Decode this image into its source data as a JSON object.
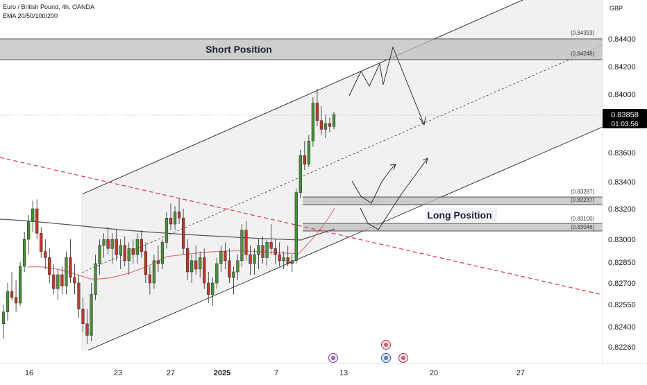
{
  "header": {
    "title": "Euro / British Pound, 4h, OANDA",
    "indicator": "EMA 20/50/100/200",
    "currency": "GBP"
  },
  "colors": {
    "bull": "#4a8f3a",
    "bear": "#c0392b",
    "ema_slow": "#555555",
    "ema_fast": "#e06070",
    "trendline": "#e0304a",
    "zone": "#bdbdbd",
    "channel_fill": "#eeeeee",
    "price_badge": "#000000"
  },
  "chart_data": {
    "type": "candlestick",
    "y_ticks": [
      "0.84400",
      "0.84200",
      "0.84000",
      "0.83600",
      "0.83400",
      "0.83200",
      "0.83000",
      "0.82850",
      "0.82700",
      "0.82550",
      "0.82400",
      "0.82260"
    ],
    "x_ticks": [
      "16",
      "23",
      "27",
      "2025",
      "7",
      "13",
      "20",
      "27"
    ],
    "current_price": "0.83858",
    "countdown": "01:03:56",
    "zones": [
      {
        "label": "Short Position",
        "top_label": "(0.84393)",
        "bottom_label": "(0.84248)"
      },
      {
        "label": "",
        "top_label": "(0.83287)",
        "bottom_label": "(0.83237)"
      },
      {
        "label": "Long Position",
        "top_label": "(0.83100)",
        "bottom_label": "(0.83046)"
      }
    ],
    "candles": [
      [
        0.8242,
        0.8255,
        0.8232,
        0.825
      ],
      [
        0.825,
        0.827,
        0.8244,
        0.8264
      ],
      [
        0.8264,
        0.8278,
        0.8258,
        0.826
      ],
      [
        0.826,
        0.8272,
        0.825,
        0.8256
      ],
      [
        0.8256,
        0.8285,
        0.8254,
        0.8282
      ],
      [
        0.8282,
        0.8305,
        0.8278,
        0.83
      ],
      [
        0.83,
        0.8316,
        0.829,
        0.8312
      ],
      [
        0.8312,
        0.8326,
        0.8305,
        0.832
      ],
      [
        0.832,
        0.8327,
        0.83,
        0.8304
      ],
      [
        0.8304,
        0.8308,
        0.8288,
        0.8292
      ],
      [
        0.8292,
        0.83,
        0.828,
        0.8288
      ],
      [
        0.8288,
        0.8294,
        0.827,
        0.8276
      ],
      [
        0.8276,
        0.8284,
        0.8262,
        0.8266
      ],
      [
        0.8266,
        0.828,
        0.8258,
        0.8276
      ],
      [
        0.8276,
        0.8282,
        0.8262,
        0.8268
      ],
      [
        0.8268,
        0.8292,
        0.8262,
        0.8288
      ],
      [
        0.8288,
        0.83,
        0.827,
        0.8274
      ],
      [
        0.8274,
        0.8284,
        0.8262,
        0.827
      ],
      [
        0.827,
        0.8276,
        0.8246,
        0.8252
      ],
      [
        0.8252,
        0.826,
        0.8236,
        0.8242
      ],
      [
        0.8242,
        0.8252,
        0.8228,
        0.8234
      ],
      [
        0.8234,
        0.827,
        0.823,
        0.8262
      ],
      [
        0.8262,
        0.829,
        0.8258,
        0.8284
      ],
      [
        0.8284,
        0.83,
        0.8276,
        0.8296
      ],
      [
        0.8296,
        0.8304,
        0.8288,
        0.83
      ],
      [
        0.83,
        0.8308,
        0.829,
        0.8294
      ],
      [
        0.8294,
        0.8304,
        0.8284,
        0.83
      ],
      [
        0.83,
        0.8306,
        0.8286,
        0.829
      ],
      [
        0.829,
        0.83,
        0.828,
        0.8296
      ],
      [
        0.8296,
        0.8302,
        0.8282,
        0.8286
      ],
      [
        0.8286,
        0.8298,
        0.8276,
        0.8294
      ],
      [
        0.8294,
        0.83,
        0.8284,
        0.829
      ],
      [
        0.829,
        0.8304,
        0.8284,
        0.83
      ],
      [
        0.83,
        0.8306,
        0.8288,
        0.8292
      ],
      [
        0.8292,
        0.8298,
        0.827,
        0.8276
      ],
      [
        0.8276,
        0.8282,
        0.8262,
        0.827
      ],
      [
        0.827,
        0.829,
        0.8266,
        0.8286
      ],
      [
        0.8286,
        0.8296,
        0.8278,
        0.8284
      ],
      [
        0.8284,
        0.83,
        0.828,
        0.8298
      ],
      [
        0.8298,
        0.8318,
        0.8294,
        0.8314
      ],
      [
        0.8314,
        0.8324,
        0.8306,
        0.831
      ],
      [
        0.831,
        0.8322,
        0.8306,
        0.8318
      ],
      [
        0.8318,
        0.8328,
        0.831,
        0.8314
      ],
      [
        0.8314,
        0.832,
        0.829,
        0.8294
      ],
      [
        0.8294,
        0.83,
        0.8272,
        0.8278
      ],
      [
        0.8278,
        0.829,
        0.827,
        0.8286
      ],
      [
        0.8286,
        0.8296,
        0.8276,
        0.828
      ],
      [
        0.828,
        0.8292,
        0.8274,
        0.8288
      ],
      [
        0.8288,
        0.8294,
        0.8266,
        0.827
      ],
      [
        0.827,
        0.8278,
        0.8256,
        0.8262
      ],
      [
        0.8262,
        0.8274,
        0.8254,
        0.827
      ],
      [
        0.827,
        0.8288,
        0.8266,
        0.8284
      ],
      [
        0.8284,
        0.8296,
        0.8278,
        0.8292
      ],
      [
        0.8292,
        0.8298,
        0.828,
        0.8286
      ],
      [
        0.8286,
        0.8294,
        0.827,
        0.8274
      ],
      [
        0.8274,
        0.8282,
        0.8262,
        0.8278
      ],
      [
        0.8278,
        0.829,
        0.8272,
        0.8286
      ],
      [
        0.8286,
        0.831,
        0.8282,
        0.8306
      ],
      [
        0.8306,
        0.8312,
        0.8286,
        0.829
      ],
      [
        0.829,
        0.8296,
        0.8276,
        0.8284
      ],
      [
        0.8284,
        0.8294,
        0.8276,
        0.829
      ],
      [
        0.829,
        0.83,
        0.828,
        0.8296
      ],
      [
        0.8296,
        0.8302,
        0.8284,
        0.8288
      ],
      [
        0.8288,
        0.83,
        0.8282,
        0.8298
      ],
      [
        0.8298,
        0.831,
        0.829,
        0.8294
      ],
      [
        0.8294,
        0.83,
        0.8284,
        0.829
      ],
      [
        0.829,
        0.8298,
        0.8282,
        0.8286
      ],
      [
        0.8286,
        0.8292,
        0.828,
        0.8288
      ],
      [
        0.8288,
        0.8296,
        0.8282,
        0.8284
      ],
      [
        0.8284,
        0.829,
        0.8278,
        0.8286
      ],
      [
        0.8286,
        0.8335,
        0.8284,
        0.8332
      ],
      [
        0.8332,
        0.8362,
        0.8328,
        0.8358
      ],
      [
        0.8358,
        0.8368,
        0.8348,
        0.8352
      ],
      [
        0.8352,
        0.8372,
        0.835,
        0.8368
      ],
      [
        0.8368,
        0.8398,
        0.8364,
        0.8394
      ],
      [
        0.8394,
        0.8404,
        0.8378,
        0.8382
      ],
      [
        0.8382,
        0.8392,
        0.8372,
        0.8376
      ],
      [
        0.8376,
        0.8386,
        0.837,
        0.838
      ],
      [
        0.838,
        0.8384,
        0.8374,
        0.8378
      ],
      [
        0.8378,
        0.8388,
        0.8376,
        0.8386
      ]
    ]
  }
}
